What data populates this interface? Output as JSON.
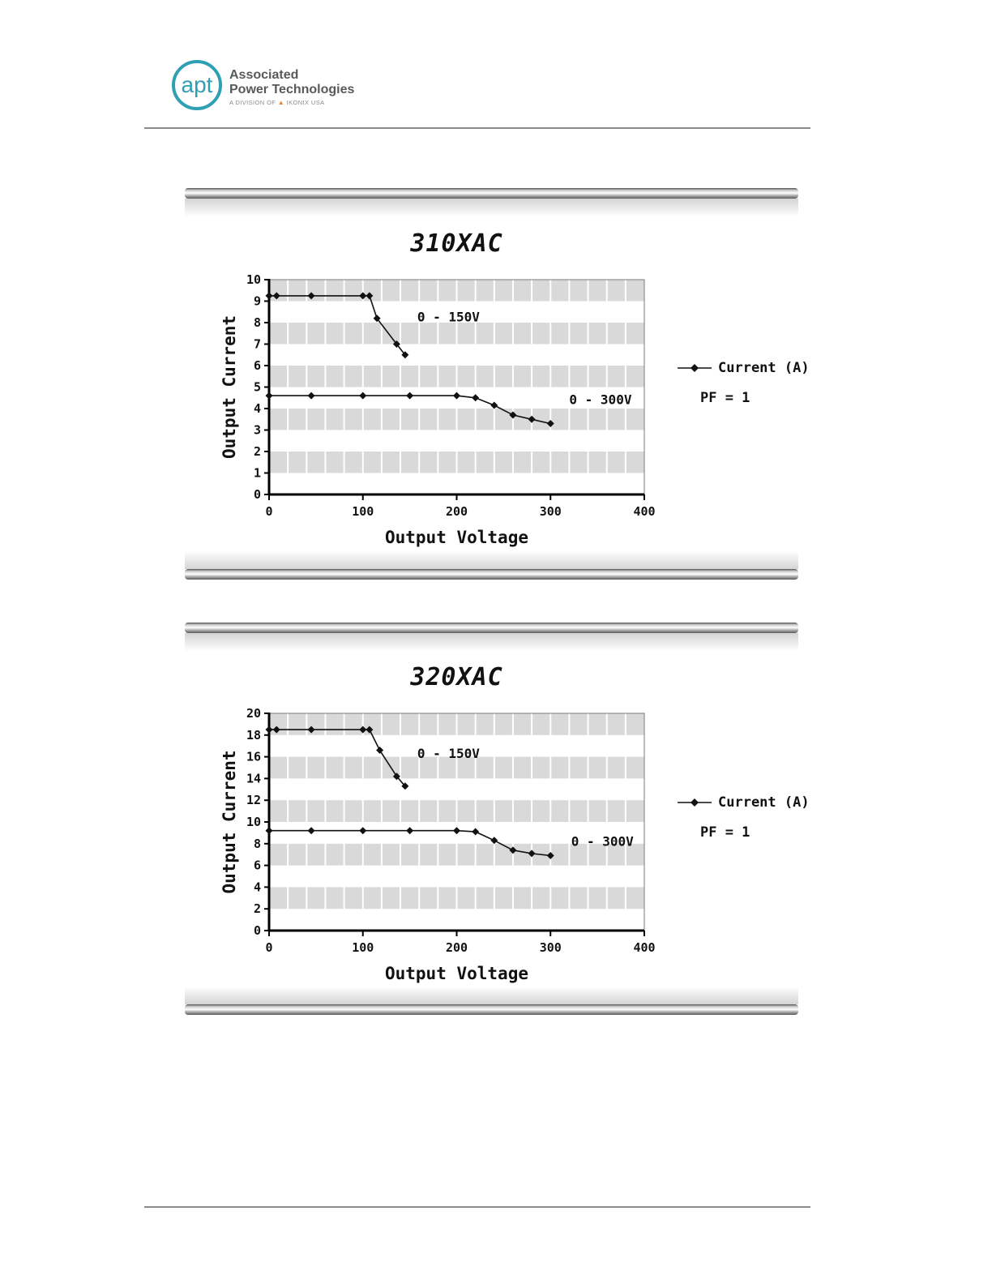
{
  "header": {
    "logo": {
      "abbr": "apt",
      "name_line1": "Associated",
      "name_line2": "Power Technologies",
      "division_prefix": "A DIVISION OF",
      "division_suffix": "IKONIX USA"
    }
  },
  "chart_data": [
    {
      "type": "line",
      "title": "310XAC",
      "xlabel": "Output Voltage",
      "ylabel": "Output Current",
      "xlim": [
        0,
        400
      ],
      "ylim": [
        0,
        10
      ],
      "xticks": [
        0,
        100,
        200,
        300,
        400
      ],
      "yticks": [
        0,
        1,
        2,
        3,
        4,
        5,
        6,
        7,
        8,
        9,
        10
      ],
      "x_minor_step": 20,
      "band_step": 1,
      "grid_band_color": "#d9d9d9",
      "legend": {
        "series_label": "Current (A)",
        "note": "PF = 1",
        "position": "right"
      },
      "annotations": [
        {
          "text": "0 - 150V",
          "x": 158,
          "y": 8.05
        },
        {
          "text": "0 - 300V",
          "x": 320,
          "y": 4.2
        }
      ],
      "series": [
        {
          "name": "0 - 150V",
          "points": [
            [
              0,
              9.25
            ],
            [
              8,
              9.25
            ],
            [
              45,
              9.25
            ],
            [
              100,
              9.25
            ],
            [
              107,
              9.25
            ],
            [
              115,
              8.2
            ],
            [
              136,
              7.0
            ],
            [
              145,
              6.5
            ]
          ]
        },
        {
          "name": "0 - 300V",
          "points": [
            [
              0,
              4.6
            ],
            [
              45,
              4.6
            ],
            [
              100,
              4.6
            ],
            [
              150,
              4.6
            ],
            [
              200,
              4.6
            ],
            [
              220,
              4.5
            ],
            [
              240,
              4.15
            ],
            [
              260,
              3.7
            ],
            [
              280,
              3.5
            ],
            [
              300,
              3.3
            ]
          ]
        }
      ]
    },
    {
      "type": "line",
      "title": "320XAC",
      "xlabel": "Output Voltage",
      "ylabel": "Output Current",
      "xlim": [
        0,
        400
      ],
      "ylim": [
        0,
        20
      ],
      "xticks": [
        0,
        100,
        200,
        300,
        400
      ],
      "yticks": [
        0,
        2,
        4,
        6,
        8,
        10,
        12,
        14,
        16,
        18,
        20
      ],
      "x_minor_step": 20,
      "band_step": 2,
      "grid_band_color": "#d9d9d9",
      "legend": {
        "series_label": "Current (A)",
        "note": "PF = 1",
        "position": "right"
      },
      "annotations": [
        {
          "text": "0 - 150V",
          "x": 158,
          "y": 15.9
        },
        {
          "text": "0 - 300V",
          "x": 322,
          "y": 7.8
        }
      ],
      "series": [
        {
          "name": "0 - 150V",
          "points": [
            [
              0,
              18.5
            ],
            [
              8,
              18.5
            ],
            [
              45,
              18.5
            ],
            [
              100,
              18.5
            ],
            [
              107,
              18.5
            ],
            [
              118,
              16.6
            ],
            [
              136,
              14.2
            ],
            [
              145,
              13.3
            ]
          ]
        },
        {
          "name": "0 - 300V",
          "points": [
            [
              0,
              9.2
            ],
            [
              45,
              9.2
            ],
            [
              100,
              9.2
            ],
            [
              150,
              9.2
            ],
            [
              200,
              9.2
            ],
            [
              220,
              9.1
            ],
            [
              240,
              8.3
            ],
            [
              260,
              7.4
            ],
            [
              280,
              7.1
            ],
            [
              300,
              6.9
            ]
          ]
        }
      ]
    }
  ]
}
